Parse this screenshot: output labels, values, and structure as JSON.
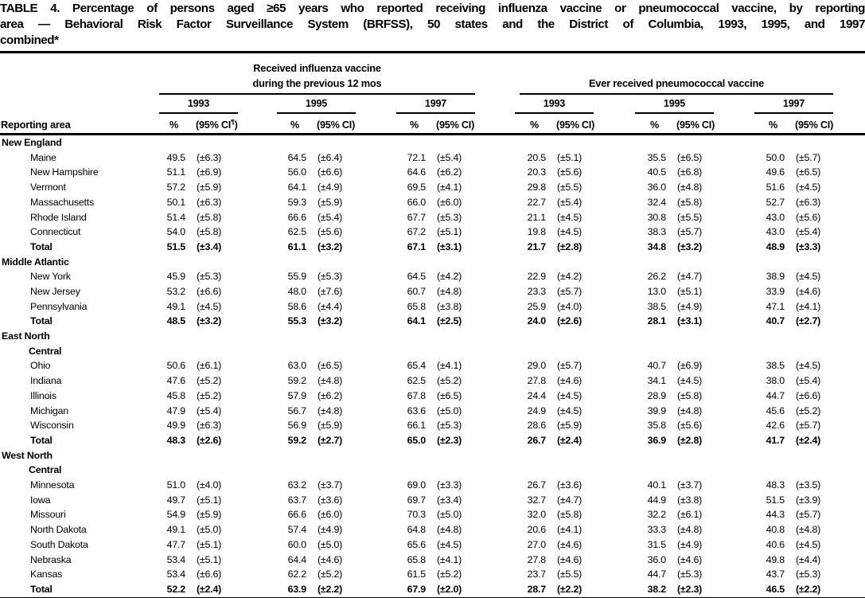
{
  "title_lines": [
    "TABLE 4. Percentage of persons aged ≥65 years who reported receiving influenza vaccine or pneumococcal vaccine, by reporting",
    "area — Behavioral Risk Factor Surveillance System (BRFSS), 50 states and the District of Columbia, 1993, 1995, and 1997",
    "combined*"
  ],
  "table": {
    "header": {
      "reporting_area": "Reporting area",
      "influenza_group_line1": "Received influenza vaccine",
      "influenza_group_line2": "during the previous 12 mos",
      "pneumococcal_group": "Ever received pneumococcal vaccine",
      "years": [
        "1993",
        "1995",
        "1997"
      ],
      "pct_label": "%",
      "ci_label": "(95% CI)",
      "ci_first_prefix": "(95% CI",
      "ci_footnote_symbol": "¶",
      "ci_first_suffix": ")"
    },
    "sections": [
      {
        "region_lines": [
          "New England"
        ],
        "rows": [
          {
            "area": "Maine",
            "flu": [
              "49.5",
              "(±6.3)",
              "64.5",
              "(±6.4)",
              "72.1",
              "(±5.4)"
            ],
            "pneumo": [
              "20.5",
              "(±5.1)",
              "35.5",
              "(±6.5)",
              "50.0",
              "(±5.7)"
            ]
          },
          {
            "area": "New Hampshire",
            "flu": [
              "51.1",
              "(±6.9)",
              "56.0",
              "(±6.6)",
              "64.6",
              "(±6.2)"
            ],
            "pneumo": [
              "20.3",
              "(±5.6)",
              "40.5",
              "(±6.8)",
              "49.6",
              "(±6.5)"
            ]
          },
          {
            "area": "Vermont",
            "flu": [
              "57.2",
              "(±5.9)",
              "64.1",
              "(±4.9)",
              "69.5",
              "(±4.1)"
            ],
            "pneumo": [
              "29.8",
              "(±5.5)",
              "36.0",
              "(±4.8)",
              "51.6",
              "(±4.5)"
            ]
          },
          {
            "area": "Massachusetts",
            "flu": [
              "50.1",
              "(±6.3)",
              "59.3",
              "(±5.9)",
              "66.0",
              "(±6.0)"
            ],
            "pneumo": [
              "22.7",
              "(±5.4)",
              "32.4",
              "(±5.8)",
              "52.7",
              "(±6.3)"
            ]
          },
          {
            "area": "Rhode Island",
            "flu": [
              "51.4",
              "(±5.8)",
              "66.6",
              "(±5.4)",
              "67.7",
              "(±5.3)"
            ],
            "pneumo": [
              "21.1",
              "(±4.5)",
              "30.8",
              "(±5.5)",
              "43.0",
              "(±5.6)"
            ]
          },
          {
            "area": "Connecticut",
            "flu": [
              "54.0",
              "(±5.8)",
              "62.5",
              "(±5.6)",
              "67.2",
              "(±5.1)"
            ],
            "pneumo": [
              "19.8",
              "(±4.5)",
              "38.3",
              "(±5.7)",
              "43.0",
              "(±5.4)"
            ]
          },
          {
            "area": "Total",
            "total": true,
            "flu": [
              "51.5",
              "(±3.4)",
              "61.1",
              "(±3.2)",
              "67.1",
              "(±3.1)"
            ],
            "pneumo": [
              "21.7",
              "(±2.8)",
              "34.8",
              "(±3.2)",
              "48.9",
              "(±3.3)"
            ]
          }
        ]
      },
      {
        "region_lines": [
          "Middle Atlantic"
        ],
        "rows": [
          {
            "area": "New York",
            "flu": [
              "45.9",
              "(±5.3)",
              "55.9",
              "(±5.3)",
              "64.5",
              "(±4.2)"
            ],
            "pneumo": [
              "22.9",
              "(±4.2)",
              "26.2",
              "(±4.7)",
              "38.9",
              "(±4.5)"
            ]
          },
          {
            "area": "New Jersey",
            "flu": [
              "53.2",
              "(±6.6)",
              "48.0",
              "(±7.6)",
              "60.7",
              "(±4.8)"
            ],
            "pneumo": [
              "23.3",
              "(±5.7)",
              "13.0",
              "(±5.1)",
              "33.9",
              "(±4.6)"
            ]
          },
          {
            "area": "Pennsylvania",
            "flu": [
              "49.1",
              "(±4.5)",
              "58.6",
              "(±4.4)",
              "65.8",
              "(±3.8)"
            ],
            "pneumo": [
              "25.9",
              "(±4.0)",
              "38.5",
              "(±4.9)",
              "47.1",
              "(±4.1)"
            ]
          },
          {
            "area": "Total",
            "total": true,
            "flu": [
              "48.5",
              "(±3.2)",
              "55.3",
              "(±3.2)",
              "64.1",
              "(±2.5)"
            ],
            "pneumo": [
              "24.0",
              "(±2.6)",
              "28.1",
              "(±3.1)",
              "40.7",
              "(±2.7)"
            ]
          }
        ]
      },
      {
        "region_lines": [
          "East North",
          "Central"
        ],
        "rows": [
          {
            "area": "Ohio",
            "flu": [
              "50.6",
              "(±6.1)",
              "63.0",
              "(±6.5)",
              "65.4",
              "(±4.1)"
            ],
            "pneumo": [
              "29.0",
              "(±5.7)",
              "40.7",
              "(±6.9)",
              "38.5",
              "(±4.5)"
            ]
          },
          {
            "area": "Indiana",
            "flu": [
              "47.6",
              "(±5.2)",
              "59.2",
              "(±4.8)",
              "62.5",
              "(±5.2)"
            ],
            "pneumo": [
              "27.8",
              "(±4.6)",
              "34.1",
              "(±4.5)",
              "38.0",
              "(±5.4)"
            ]
          },
          {
            "area": "Illinois",
            "flu": [
              "45.8",
              "(±5.2)",
              "57.9",
              "(±6.2)",
              "67.8",
              "(±6.5)"
            ],
            "pneumo": [
              "24.4",
              "(±4.5)",
              "28.9",
              "(±5.8)",
              "44.7",
              "(±6.6)"
            ]
          },
          {
            "area": "Michigan",
            "flu": [
              "47.9",
              "(±5.4)",
              "56.7",
              "(±4.8)",
              "63.6",
              "(±5.0)"
            ],
            "pneumo": [
              "24.9",
              "(±4.5)",
              "39.9",
              "(±4.8)",
              "45.6",
              "(±5.2)"
            ]
          },
          {
            "area": "Wisconsin",
            "flu": [
              "49.9",
              "(±6.3)",
              "56.9",
              "(±5.9)",
              "66.1",
              "(±5.3)"
            ],
            "pneumo": [
              "28.6",
              "(±5.9)",
              "35.8",
              "(±5.6)",
              "42.6",
              "(±5.7)"
            ]
          },
          {
            "area": "Total",
            "total": true,
            "flu": [
              "48.3",
              "(±2.6)",
              "59.2",
              "(±2.7)",
              "65.0",
              "(±2.3)"
            ],
            "pneumo": [
              "26.7",
              "(±2.4)",
              "36.9",
              "(±2.8)",
              "41.7",
              "(±2.4)"
            ]
          }
        ]
      },
      {
        "region_lines": [
          "West North",
          "Central"
        ],
        "rows": [
          {
            "area": "Minnesota",
            "flu": [
              "51.0",
              "(±4.0)",
              "63.2",
              "(±3.7)",
              "69.0",
              "(±3.3)"
            ],
            "pneumo": [
              "26.7",
              "(±3.6)",
              "40.1",
              "(±3.7)",
              "48.3",
              "(±3.5)"
            ]
          },
          {
            "area": "Iowa",
            "flu": [
              "49.7",
              "(±5.1)",
              "63.7",
              "(±3.6)",
              "69.7",
              "(±3.4)"
            ],
            "pneumo": [
              "32.7",
              "(±4.7)",
              "44.9",
              "(±3.8)",
              "51.5",
              "(±3.9)"
            ]
          },
          {
            "area": "Missouri",
            "flu": [
              "54.9",
              "(±5.9)",
              "66.6",
              "(±6.0)",
              "70.3",
              "(±5.0)"
            ],
            "pneumo": [
              "32.0",
              "(±5.8)",
              "32.2",
              "(±6.1)",
              "44.3",
              "(±5.7)"
            ]
          },
          {
            "area": "North Dakota",
            "flu": [
              "49.1",
              "(±5.0)",
              "57.4",
              "(±4.9)",
              "64.8",
              "(±4.8)"
            ],
            "pneumo": [
              "20.6",
              "(±4.1)",
              "33.3",
              "(±4.8)",
              "40.8",
              "(±4.8)"
            ]
          },
          {
            "area": "South Dakota",
            "flu": [
              "47.7",
              "(±5.1)",
              "60.0",
              "(±5.0)",
              "65.6",
              "(±4.5)"
            ],
            "pneumo": [
              "27.0",
              "(±4.6)",
              "31.5",
              "(±4.9)",
              "40.6",
              "(±4.5)"
            ]
          },
          {
            "area": "Nebraska",
            "flu": [
              "53.4",
              "(±5.1)",
              "64.4",
              "(±4.6)",
              "65.8",
              "(±4.1)"
            ],
            "pneumo": [
              "27.8",
              "(±4.6)",
              "36.0",
              "(±4.6)",
              "49.8",
              "(±4.4)"
            ]
          },
          {
            "area": "Kansas",
            "flu": [
              "53.4",
              "(±6.6)",
              "62.2",
              "(±5.2)",
              "61.5",
              "(±5.2)"
            ],
            "pneumo": [
              "23.7",
              "(±5.5)",
              "44.7",
              "(±5.3)",
              "43.7",
              "(±5.3)"
            ]
          },
          {
            "area": "Total",
            "total": true,
            "flu": [
              "52.2",
              "(±2.4)",
              "63.9",
              "(±2.2)",
              "67.9",
              "(±2.0)"
            ],
            "pneumo": [
              "28.7",
              "(±2.2)",
              "38.2",
              "(±2.3)",
              "46.5",
              "(±2.2)"
            ]
          }
        ]
      }
    ]
  }
}
